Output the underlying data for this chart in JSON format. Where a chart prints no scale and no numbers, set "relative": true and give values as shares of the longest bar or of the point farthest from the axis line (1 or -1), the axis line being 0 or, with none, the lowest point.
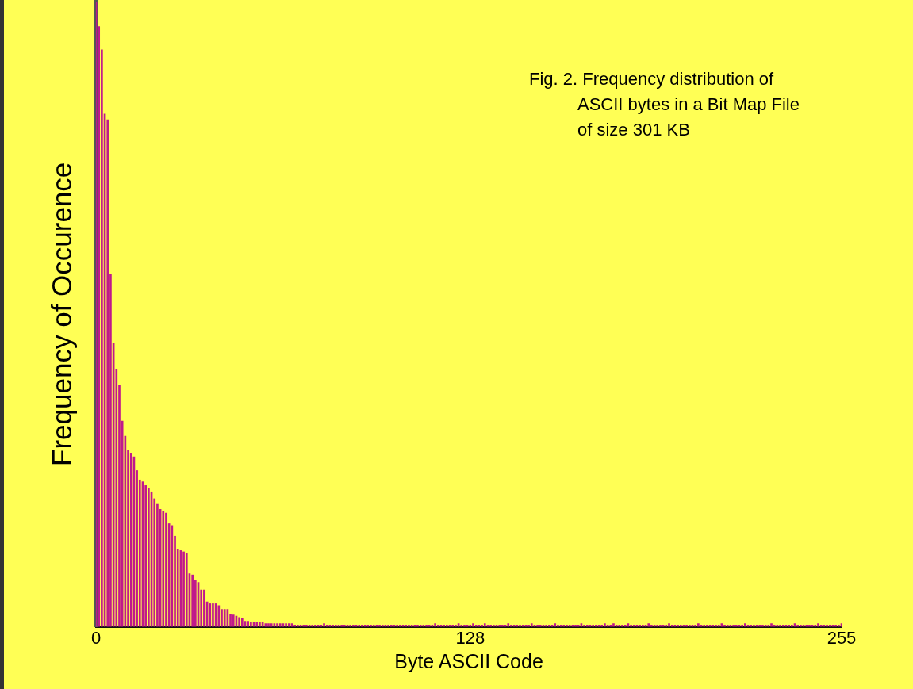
{
  "chart_data": {
    "type": "bar",
    "title": "Fig. 2. Frequency distribution of\nASCII bytes in a Bit Map File\nof size 301 KB",
    "xlabel": "Byte ASCII Code",
    "ylabel": "Frequency of Occurence",
    "relative": true,
    "color": "#c0188c",
    "xlim": [
      0,
      255
    ],
    "xticks": [
      0,
      128,
      255
    ],
    "x": [
      0,
      1,
      2,
      3,
      4,
      5,
      6,
      7,
      8,
      9,
      10,
      11,
      12,
      13,
      14,
      15,
      16,
      17,
      18,
      19,
      20,
      21,
      22,
      23,
      24,
      25,
      26,
      27,
      28,
      29,
      30,
      31,
      32,
      33,
      34,
      35,
      36,
      37,
      38,
      39,
      40,
      41,
      42,
      43,
      44,
      45,
      46,
      47,
      48,
      49,
      50,
      51,
      52,
      53,
      54,
      55,
      56,
      57,
      58,
      59,
      60,
      61,
      62,
      63,
      64,
      65,
      66,
      67,
      68,
      69,
      70,
      71,
      72,
      73,
      74,
      75,
      76,
      77,
      78,
      79,
      80,
      81,
      82,
      83,
      84,
      85,
      86,
      87,
      88,
      89,
      90,
      91,
      92,
      93,
      94,
      95,
      96,
      97,
      98,
      99,
      100,
      101,
      102,
      103,
      104,
      105,
      106,
      107,
      108,
      109,
      110,
      111,
      112,
      113,
      114,
      115,
      116,
      117,
      118,
      119,
      120,
      121,
      122,
      123,
      124,
      125,
      126,
      127,
      128,
      129,
      130,
      131,
      132,
      133,
      134,
      135,
      136,
      137,
      138,
      139,
      140,
      141,
      142,
      143,
      144,
      145,
      146,
      147,
      148,
      149,
      150,
      151,
      152,
      153,
      154,
      155,
      156,
      157,
      158,
      159,
      160,
      161,
      162,
      163,
      164,
      165,
      166,
      167,
      168,
      169,
      170,
      171,
      172,
      173,
      174,
      175,
      176,
      177,
      178,
      179,
      180,
      181,
      182,
      183,
      184,
      185,
      186,
      187,
      188,
      189,
      190,
      191,
      192,
      193,
      194,
      195,
      196,
      197,
      198,
      199,
      200,
      201,
      202,
      203,
      204,
      205,
      206,
      207,
      208,
      209,
      210,
      211,
      212,
      213,
      214,
      215,
      216,
      217,
      218,
      219,
      220,
      221,
      222,
      223,
      224,
      225,
      226,
      227,
      228,
      229,
      230,
      231,
      232,
      233,
      234,
      235,
      236,
      237,
      238,
      239,
      240,
      241,
      242,
      243,
      244,
      245,
      246,
      247,
      248,
      249,
      250,
      251,
      252,
      253,
      254,
      255
    ],
    "values": [
      1,
      0.96,
      0.923,
      0.82,
      0.811,
      0.564,
      0.453,
      0.412,
      0.386,
      0.329,
      0.305,
      0.283,
      0.278,
      0.272,
      0.25,
      0.235,
      0.232,
      0.226,
      0.221,
      0.216,
      0.205,
      0.196,
      0.188,
      0.185,
      0.182,
      0.165,
      0.162,
      0.145,
      0.124,
      0.122,
      0.12,
      0.117,
      0.085,
      0.083,
      0.075,
      0.071,
      0.059,
      0.059,
      0.04,
      0.037,
      0.037,
      0.037,
      0.034,
      0.028,
      0.028,
      0.028,
      0.02,
      0.019,
      0.017,
      0.015,
      0.014,
      0.009,
      0.009,
      0.008,
      0.008,
      0.008,
      0.008,
      0.008,
      0.005,
      0.005,
      0.005,
      0.005,
      0.005,
      0.005,
      0.005,
      0.005,
      0.005,
      0.005,
      0.003,
      0.003,
      0.003,
      0.003,
      0.003,
      0.003,
      0.003,
      0.003,
      0.003,
      0.003,
      0.005,
      0.003,
      0.003,
      0.003,
      0.003,
      0.003,
      0.003,
      0.003,
      0.003,
      0.003,
      0.003,
      0.003,
      0.003,
      0.003,
      0.003,
      0.003,
      0.003,
      0.003,
      0.003,
      0.003,
      0.003,
      0.003,
      0.003,
      0.003,
      0.003,
      0.003,
      0.003,
      0.003,
      0.003,
      0.003,
      0.003,
      0.003,
      0.003,
      0.003,
      0.003,
      0.003,
      0.003,
      0.003,
      0.005,
      0.003,
      0.003,
      0.003,
      0.003,
      0.003,
      0.003,
      0.003,
      0.005,
      0.003,
      0.003,
      0.003,
      0.003,
      0.005,
      0.003,
      0.003,
      0.003,
      0.005,
      0.003,
      0.003,
      0.003,
      0.003,
      0.003,
      0.003,
      0.003,
      0.005,
      0.003,
      0.003,
      0.003,
      0.003,
      0.003,
      0.003,
      0.003,
      0.005,
      0.003,
      0.003,
      0.003,
      0.003,
      0.003,
      0.003,
      0.003,
      0.005,
      0.003,
      0.003,
      0.003,
      0.003,
      0.003,
      0.003,
      0.003,
      0.003,
      0.005,
      0.003,
      0.003,
      0.003,
      0.003,
      0.003,
      0.003,
      0.003,
      0.005,
      0.003,
      0.003,
      0.005,
      0.003,
      0.003,
      0.003,
      0.003,
      0.005,
      0.003,
      0.003,
      0.003,
      0.003,
      0.003,
      0.003,
      0.005,
      0.003,
      0.003,
      0.003,
      0.003,
      0.003,
      0.003,
      0.005,
      0.003,
      0.003,
      0.003,
      0.003,
      0.003,
      0.003,
      0.003,
      0.003,
      0.003,
      0.005,
      0.003,
      0.003,
      0.003,
      0.003,
      0.003,
      0.003,
      0.003,
      0.005,
      0.003,
      0.003,
      0.003,
      0.003,
      0.003,
      0.003,
      0.003,
      0.005,
      0.003,
      0.003,
      0.003,
      0.003,
      0.003,
      0.003,
      0.003,
      0.003,
      0.005,
      0.003,
      0.003,
      0.003,
      0.003,
      0.003,
      0.003,
      0.003,
      0.005,
      0.003,
      0.003,
      0.003,
      0.003,
      0.003,
      0.003,
      0.003,
      0.005,
      0.003,
      0.003,
      0.003,
      0.003,
      0.003,
      0.003,
      0.003,
      0.005
    ]
  }
}
